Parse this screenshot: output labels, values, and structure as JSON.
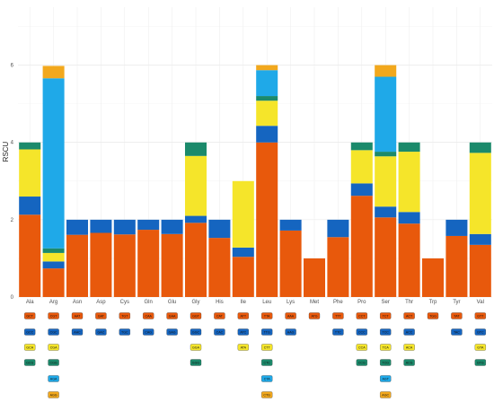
{
  "chart_data": {
    "type": "bar",
    "stacked": true,
    "ylabel": "RSCU",
    "xlabel": "",
    "ylim": [
      0,
      7.5
    ],
    "yticks": [
      0,
      2,
      4,
      6
    ],
    "grid": true,
    "legend": "codon labels below x-axis, one colored row per stack layer",
    "categories": [
      "Ala",
      "Arg",
      "Asn",
      "Asp",
      "Cys",
      "Gln",
      "Glu",
      "Gly",
      "His",
      "Ile",
      "Leu",
      "Lys",
      "Met",
      "Phe",
      "Pro",
      "Ser",
      "Thr",
      "Trp",
      "Tyr",
      "Val"
    ],
    "layer_colors": [
      "#e8590c",
      "#1565c0",
      "#f5e52a",
      "#1b8a6b",
      "#1fa9e8",
      "#f2a81d"
    ],
    "bars": [
      {
        "aa": "Ala",
        "segments": [
          {
            "codon": "GCT",
            "value": 2.13
          },
          {
            "codon": "GCC",
            "value": 0.47
          },
          {
            "codon": "GCA",
            "value": 1.22
          },
          {
            "codon": "GCG",
            "value": 0.18
          }
        ]
      },
      {
        "aa": "Arg",
        "segments": [
          {
            "codon": "CGT",
            "value": 0.74
          },
          {
            "codon": "CGC",
            "value": 0.18
          },
          {
            "codon": "CGA",
            "value": 0.22
          },
          {
            "codon": "CGG",
            "value": 0.12
          },
          {
            "codon": "AGA",
            "value": 4.4
          },
          {
            "codon": "AGG",
            "value": 0.32
          }
        ]
      },
      {
        "aa": "Asn",
        "segments": [
          {
            "codon": "AAT",
            "value": 1.61
          },
          {
            "codon": "AAC",
            "value": 0.39
          }
        ]
      },
      {
        "aa": "Asp",
        "segments": [
          {
            "codon": "GAT",
            "value": 1.66
          },
          {
            "codon": "GAC",
            "value": 0.34
          }
        ]
      },
      {
        "aa": "Cys",
        "segments": [
          {
            "codon": "TGT",
            "value": 1.62
          },
          {
            "codon": "TGC",
            "value": 0.38
          }
        ]
      },
      {
        "aa": "Gln",
        "segments": [
          {
            "codon": "CAA",
            "value": 1.74
          },
          {
            "codon": "CAG",
            "value": 0.26
          }
        ]
      },
      {
        "aa": "Glu",
        "segments": [
          {
            "codon": "GAA",
            "value": 1.63
          },
          {
            "codon": "GAG",
            "value": 0.37
          }
        ]
      },
      {
        "aa": "Gly",
        "segments": [
          {
            "codon": "GGT",
            "value": 1.92
          },
          {
            "codon": "GGC",
            "value": 0.18
          },
          {
            "codon": "GGA",
            "value": 1.55
          },
          {
            "codon": "GGG",
            "value": 0.35
          }
        ]
      },
      {
        "aa": "His",
        "segments": [
          {
            "codon": "CAT",
            "value": 1.53
          },
          {
            "codon": "CAC",
            "value": 0.47
          }
        ]
      },
      {
        "aa": "Ile",
        "segments": [
          {
            "codon": "ATT",
            "value": 1.04
          },
          {
            "codon": "ATC",
            "value": 0.24
          },
          {
            "codon": "ATA",
            "value": 1.72
          }
        ]
      },
      {
        "aa": "Leu",
        "segments": [
          {
            "codon": "TTA",
            "value": 4.0
          },
          {
            "codon": "TTG",
            "value": 0.43
          },
          {
            "codon": "CTT",
            "value": 0.65
          },
          {
            "codon": "CTC",
            "value": 0.12
          },
          {
            "codon": "CTA",
            "value": 0.67
          },
          {
            "codon": "CTG",
            "value": 0.13
          }
        ]
      },
      {
        "aa": "Lys",
        "segments": [
          {
            "codon": "AAA",
            "value": 1.72
          },
          {
            "codon": "AAG",
            "value": 0.28
          }
        ]
      },
      {
        "aa": "Met",
        "segments": [
          {
            "codon": "ATG",
            "value": 1.0
          }
        ]
      },
      {
        "aa": "Phe",
        "segments": [
          {
            "codon": "TTT",
            "value": 1.55
          },
          {
            "codon": "TTC",
            "value": 0.45
          }
        ]
      },
      {
        "aa": "Pro",
        "segments": [
          {
            "codon": "CCT",
            "value": 2.62
          },
          {
            "codon": "CCC",
            "value": 0.32
          },
          {
            "codon": "CCA",
            "value": 0.86
          },
          {
            "codon": "CCG",
            "value": 0.2
          }
        ]
      },
      {
        "aa": "Ser",
        "segments": [
          {
            "codon": "TCT",
            "value": 2.06
          },
          {
            "codon": "TCC",
            "value": 0.28
          },
          {
            "codon": "TCA",
            "value": 1.3
          },
          {
            "codon": "TCG",
            "value": 0.12
          },
          {
            "codon": "AGT",
            "value": 1.94
          },
          {
            "codon": "AGC",
            "value": 0.3
          }
        ]
      },
      {
        "aa": "Thr",
        "segments": [
          {
            "codon": "ACT",
            "value": 1.9
          },
          {
            "codon": "ACC",
            "value": 0.3
          },
          {
            "codon": "ACA",
            "value": 1.56
          },
          {
            "codon": "ACG",
            "value": 0.24
          }
        ]
      },
      {
        "aa": "Trp",
        "segments": [
          {
            "codon": "TGG",
            "value": 1.0
          }
        ]
      },
      {
        "aa": "Tyr",
        "segments": [
          {
            "codon": "TAT",
            "value": 1.58
          },
          {
            "codon": "TAC",
            "value": 0.42
          }
        ]
      },
      {
        "aa": "Val",
        "segments": [
          {
            "codon": "GTT",
            "value": 1.35
          },
          {
            "codon": "GTC",
            "value": 0.28
          },
          {
            "codon": "GTA",
            "value": 2.1
          },
          {
            "codon": "GTG",
            "value": 0.27
          }
        ]
      }
    ]
  }
}
